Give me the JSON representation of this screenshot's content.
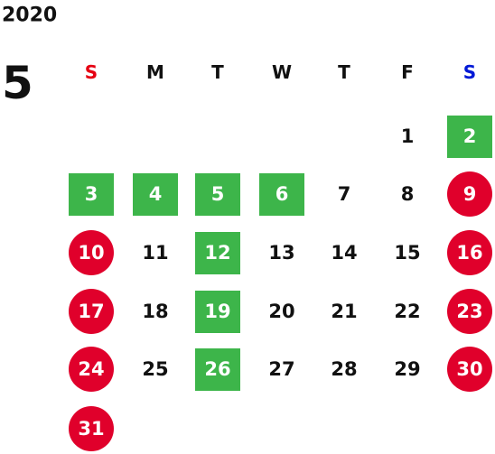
{
  "header": {
    "year": "2020",
    "month": "5"
  },
  "weekdays": [
    {
      "label": "S",
      "color": "#e60012"
    },
    {
      "label": "M",
      "color": "#111111"
    },
    {
      "label": "T",
      "color": "#111111"
    },
    {
      "label": "W",
      "color": "#111111"
    },
    {
      "label": "T",
      "color": "#111111"
    },
    {
      "label": "F",
      "color": "#111111"
    },
    {
      "label": "S",
      "color": "#0019d6"
    }
  ],
  "weeks": [
    [
      null,
      null,
      null,
      null,
      null,
      {
        "day": 1
      },
      {
        "day": 2,
        "shape": "square",
        "color": "#3db54a"
      }
    ],
    [
      {
        "day": 3,
        "shape": "square",
        "color": "#3db54a"
      },
      {
        "day": 4,
        "shape": "square",
        "color": "#3db54a"
      },
      {
        "day": 5,
        "shape": "square",
        "color": "#3db54a"
      },
      {
        "day": 6,
        "shape": "square",
        "color": "#3db54a"
      },
      {
        "day": 7
      },
      {
        "day": 8
      },
      {
        "day": 9,
        "shape": "circle",
        "color": "#e0002b"
      }
    ],
    [
      {
        "day": 10,
        "shape": "circle",
        "color": "#e0002b"
      },
      {
        "day": 11
      },
      {
        "day": 12,
        "shape": "square",
        "color": "#3db54a"
      },
      {
        "day": 13
      },
      {
        "day": 14
      },
      {
        "day": 15
      },
      {
        "day": 16,
        "shape": "circle",
        "color": "#e0002b"
      }
    ],
    [
      {
        "day": 17,
        "shape": "circle",
        "color": "#e0002b"
      },
      {
        "day": 18
      },
      {
        "day": 19,
        "shape": "square",
        "color": "#3db54a"
      },
      {
        "day": 20
      },
      {
        "day": 21
      },
      {
        "day": 22
      },
      {
        "day": 23,
        "shape": "circle",
        "color": "#e0002b"
      }
    ],
    [
      {
        "day": 24,
        "shape": "circle",
        "color": "#e0002b"
      },
      {
        "day": 25
      },
      {
        "day": 26,
        "shape": "square",
        "color": "#3db54a"
      },
      {
        "day": 27
      },
      {
        "day": 28
      },
      {
        "day": 29
      },
      {
        "day": 30,
        "shape": "circle",
        "color": "#e0002b"
      }
    ],
    [
      {
        "day": 31,
        "shape": "circle",
        "color": "#e0002b"
      }
    ]
  ]
}
